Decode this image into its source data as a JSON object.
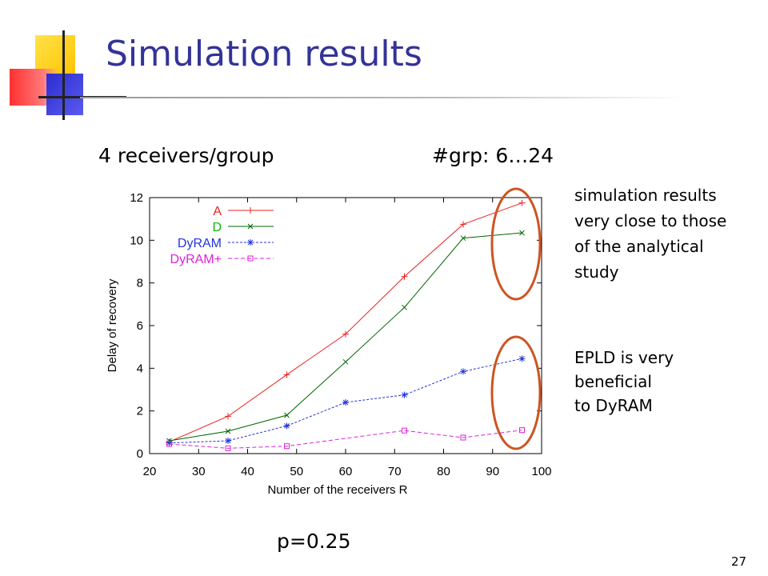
{
  "slide": {
    "title": "Simulation results",
    "subtitle_left": "4 receivers/group",
    "subtitle_right": "#grp: 6…24",
    "note_top": [
      "simulation results",
      "very close to those",
      "of the analytical",
      "study"
    ],
    "note_bottom": [
      "EPLD is very",
      "beneficial",
      "to DyRAM"
    ],
    "param": "p=0.25",
    "page_number": "27"
  },
  "colors": {
    "title": "#333399",
    "circle": "#cc5522"
  },
  "chart_data": {
    "type": "line",
    "title": "",
    "xlabel": "Number of the receivers R",
    "ylabel": "Delay of recovery",
    "xlim": [
      20,
      100
    ],
    "ylim": [
      0,
      12
    ],
    "xticks": [
      20,
      30,
      40,
      50,
      60,
      70,
      80,
      90,
      100
    ],
    "yticks": [
      0,
      2,
      4,
      6,
      8,
      10,
      12
    ],
    "grid": false,
    "legend_position": "top-left",
    "series": [
      {
        "name": "A",
        "color": "#ee2222",
        "marker": "plus",
        "dash": "solid",
        "x": [
          24,
          36,
          48,
          60,
          72,
          84,
          96
        ],
        "y": [
          0.55,
          1.75,
          3.7,
          5.6,
          8.3,
          10.75,
          11.75
        ]
      },
      {
        "name": "D",
        "color": "#006600",
        "legend_color": "#00bb00",
        "marker": "x",
        "dash": "solid",
        "x": [
          24,
          36,
          48,
          60,
          72,
          84,
          96
        ],
        "y": [
          0.6,
          1.05,
          1.8,
          4.3,
          6.85,
          10.1,
          10.35
        ]
      },
      {
        "name": "DyRAM",
        "color": "#2233dd",
        "marker": "star",
        "dash": "3,2",
        "x": [
          24,
          36,
          48,
          60,
          72,
          84,
          96
        ],
        "y": [
          0.5,
          0.6,
          1.3,
          2.4,
          2.75,
          3.85,
          4.45
        ]
      },
      {
        "name": "DyRAM+",
        "color": "#dd22dd",
        "marker": "square",
        "dash": "5,3",
        "x": [
          24,
          36,
          48,
          72,
          84,
          96
        ],
        "y": [
          0.45,
          0.25,
          0.35,
          1.08,
          0.75,
          1.1
        ]
      }
    ]
  }
}
